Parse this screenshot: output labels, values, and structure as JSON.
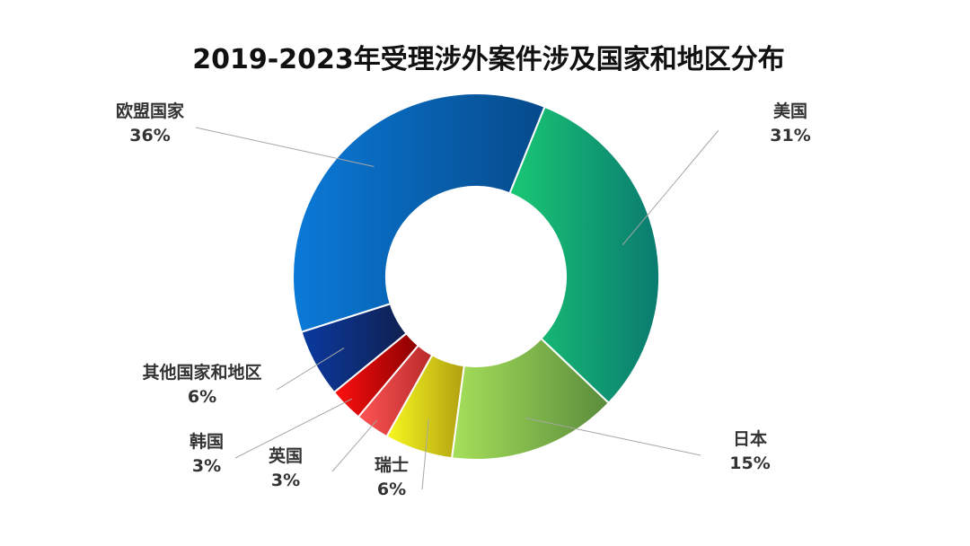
{
  "chart_data": {
    "type": "pie",
    "variant": "donut",
    "title": "2019-2023年受理涉外案件涉及国家和地区分布",
    "slices": [
      {
        "label": "美国",
        "value": 31,
        "value_label": "31%",
        "color_start": "#19c874",
        "color_end": "#0a7a70"
      },
      {
        "label": "日本",
        "value": 15,
        "value_label": "15%",
        "color_start": "#a6e05a",
        "color_end": "#5a8c3c"
      },
      {
        "label": "瑞士",
        "value": 6,
        "value_label": "6%",
        "color_start": "#f8f820",
        "color_end": "#b0a010"
      },
      {
        "label": "英国",
        "value": 3,
        "value_label": "3%",
        "color_start": "#ff5555",
        "color_end": "#b82a2a"
      },
      {
        "label": "韩国",
        "value": 3,
        "value_label": "3%",
        "color_start": "#ff1010",
        "color_end": "#8a0000"
      },
      {
        "label": "其他国家和地区",
        "value": 6,
        "value_label": "6%",
        "color_start": "#0a3aa0",
        "color_end": "#102050"
      },
      {
        "label": "欧盟国家",
        "value": 36,
        "value_label": "36%",
        "color_start": "#0a7ad8",
        "color_end": "#064a8a"
      }
    ],
    "legend": "none",
    "grid": false
  }
}
